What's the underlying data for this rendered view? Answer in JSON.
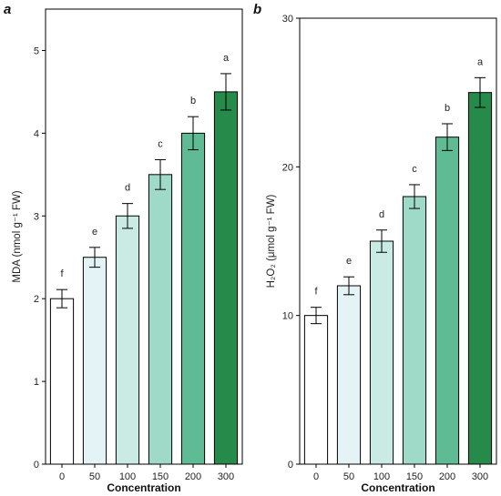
{
  "chart_data": [
    {
      "type": "bar",
      "panel_label": "a",
      "categories": [
        "0",
        "50",
        "100",
        "150",
        "200",
        "300"
      ],
      "values": [
        2.0,
        2.5,
        3.0,
        3.5,
        4.0,
        4.5
      ],
      "errors": [
        0.11,
        0.12,
        0.15,
        0.18,
        0.2,
        0.22
      ],
      "significance": [
        "f",
        "e",
        "d",
        "c",
        "b",
        "a"
      ],
      "xlabel": "Concentration",
      "ylabel": "MDA (nmol g⁻¹ FW)",
      "ylim": [
        0,
        5.5
      ],
      "yticks": [
        0,
        1,
        2,
        3,
        4,
        5
      ],
      "bar_colors": [
        "#ffffff",
        "#e3f3f6",
        "#c9ebe3",
        "#9fd9c7",
        "#5fbb93",
        "#268a4a"
      ],
      "grid": false
    },
    {
      "type": "bar",
      "panel_label": "b",
      "categories": [
        "0",
        "50",
        "100",
        "150",
        "200",
        "300"
      ],
      "values": [
        10,
        12,
        15,
        18,
        22,
        25
      ],
      "errors": [
        0.55,
        0.6,
        0.75,
        0.8,
        0.9,
        1.0
      ],
      "significance": [
        "f",
        "e",
        "d",
        "c",
        "b",
        "a"
      ],
      "xlabel": "Concentration",
      "ylabel": "H₂O₂ (μmol g⁻¹ FW)",
      "ylim": [
        0,
        30
      ],
      "yticks": [
        0,
        10,
        20,
        30
      ],
      "bar_colors": [
        "#ffffff",
        "#e3f3f6",
        "#c9ebe3",
        "#9fd9c7",
        "#5fbb93",
        "#268a4a"
      ],
      "grid": false
    }
  ]
}
